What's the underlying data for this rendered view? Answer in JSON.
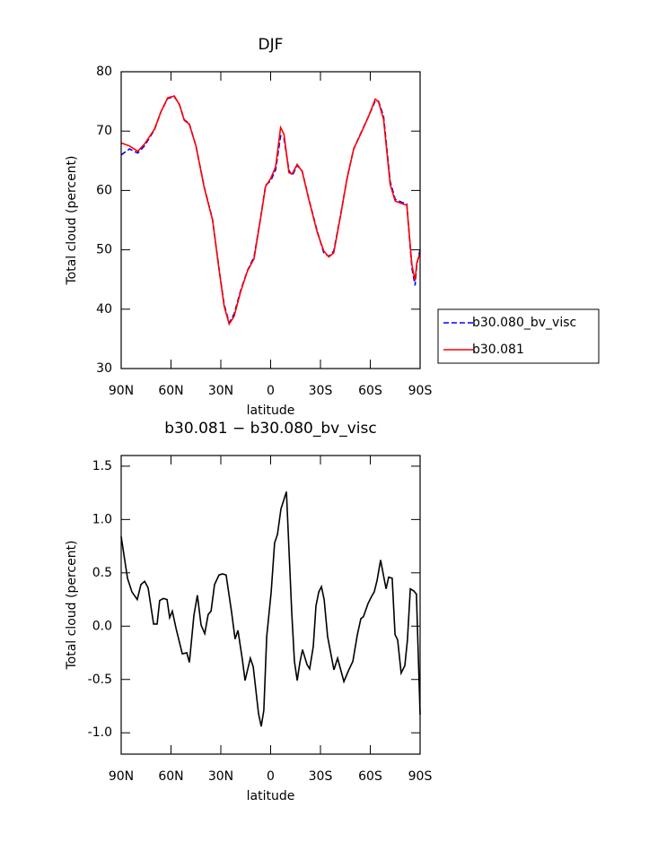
{
  "chart_data": [
    {
      "type": "line",
      "title": "DJF",
      "xlabel": "latitude",
      "ylabel": "Total cloud (percent)",
      "x": [
        90,
        85,
        80,
        76,
        70,
        66,
        62,
        58,
        55,
        52,
        49,
        45,
        40,
        35,
        31,
        28,
        25,
        22,
        18,
        14,
        10,
        6,
        3,
        0,
        -3,
        -6,
        -8,
        -11,
        -13,
        -16,
        -19,
        -23,
        -28,
        -32,
        -35,
        -38,
        -42,
        -46,
        -50,
        -55,
        -59,
        -63,
        -65,
        -68,
        -72,
        -75,
        -79,
        -82,
        -85,
        -87,
        -88,
        -90
      ],
      "series": [
        {
          "name": "b30.080_bv_visc",
          "color": "#0000ff",
          "dash": true,
          "values": [
            66.0,
            67.0,
            66.3,
            67.5,
            70.2,
            73.3,
            75.5,
            75.8,
            74.5,
            71.9,
            71.3,
            67.5,
            60.6,
            55.1,
            46.6,
            40.8,
            37.7,
            39.2,
            43.2,
            46.5,
            48.8,
            55.5,
            60.9,
            61.6,
            63.5,
            69.2,
            68.8,
            63.4,
            62.5,
            64.2,
            63.3,
            58.6,
            53.2,
            49.5,
            48.9,
            49.8,
            55.7,
            62.0,
            67.0,
            70.1,
            72.5,
            75.1,
            75.0,
            72.5,
            61.5,
            58.5,
            58.0,
            57.7,
            47.0,
            44.0,
            47.5,
            50.0
          ]
        },
        {
          "name": "b30.081",
          "color": "#ff0000",
          "dash": false,
          "values": [
            68.0,
            67.5,
            66.6,
            67.8,
            70.3,
            73.3,
            75.6,
            75.9,
            74.5,
            71.8,
            71.2,
            67.5,
            60.5,
            55.0,
            46.5,
            40.5,
            37.5,
            38.8,
            43.0,
            46.4,
            48.5,
            55.4,
            60.7,
            62.0,
            64.0,
            70.6,
            69.5,
            63.0,
            62.8,
            64.4,
            63.2,
            58.5,
            53.0,
            49.8,
            48.8,
            49.5,
            55.6,
            62.0,
            67.0,
            70.0,
            72.5,
            75.4,
            74.9,
            72.0,
            61.0,
            58.2,
            57.8,
            57.5,
            47.5,
            44.8,
            47.8,
            49.5
          ]
        }
      ],
      "xlim": [
        90,
        -90
      ],
      "xticks": [
        {
          "value": 90,
          "label": "90N"
        },
        {
          "value": 60,
          "label": "60N"
        },
        {
          "value": 30,
          "label": "30N"
        },
        0,
        {
          "value": -30,
          "label": "30S"
        },
        {
          "value": -60,
          "label": "60S"
        },
        {
          "value": -90,
          "label": "90S"
        }
      ],
      "ylim": [
        30,
        80
      ],
      "yticks": [
        30,
        40,
        50,
        60,
        70,
        80
      ],
      "legend": "right"
    },
    {
      "type": "line",
      "title": "b30.081 − b30.080_bv_visc",
      "xlabel": "latitude",
      "ylabel": "Total cloud (percent)",
      "x": [
        90,
        86.2,
        83.5,
        80.3,
        78.1,
        75.9,
        73.8,
        70.5,
        68.4,
        66.8,
        64.6,
        62.4,
        60.8,
        59.2,
        57.0,
        53.2,
        50.5,
        48.9,
        46.2,
        44.1,
        41.9,
        39.7,
        37.6,
        35.9,
        33.8,
        31.1,
        28.9,
        26.8,
        23.5,
        21.4,
        19.7,
        17.0,
        15.4,
        12.2,
        10.5,
        7.3,
        5.7,
        4.1,
        2.4,
        -0.3,
        -2.4,
        -4.1,
        -6.2,
        -9.5,
        -12.7,
        -14.3,
        -16.0,
        -17.6,
        -19.2,
        -21.9,
        -23.5,
        -25.7,
        -27.3,
        -29.0,
        -30.6,
        -32.2,
        -34.3,
        -38.1,
        -40.3,
        -44.1,
        -46.8,
        -49.5,
        -52.2,
        -54.3,
        -55.9,
        -58.6,
        -60.8,
        -62.4,
        -64.1,
        -66.2,
        -67.8,
        -69.5,
        -71.1,
        -73.2,
        -74.9,
        -76.5,
        -78.6,
        -80.8,
        -82.4,
        -84.1,
        -86.2,
        -87.8,
        -90
      ],
      "series": [
        {
          "color": "#000000",
          "values": [
            0.84,
            0.45,
            0.32,
            0.25,
            0.39,
            0.42,
            0.36,
            0.02,
            0.02,
            0.24,
            0.26,
            0.25,
            0.08,
            0.14,
            -0.02,
            -0.26,
            -0.25,
            -0.34,
            0.1,
            0.29,
            0.01,
            -0.07,
            0.11,
            0.14,
            0.39,
            0.48,
            0.49,
            0.48,
            0.13,
            -0.12,
            -0.04,
            -0.32,
            -0.51,
            -0.3,
            -0.38,
            -0.82,
            -0.94,
            -0.79,
            -0.1,
            0.32,
            0.78,
            0.86,
            1.1,
            1.26,
            0.13,
            -0.33,
            -0.51,
            -0.34,
            -0.22,
            -0.36,
            -0.4,
            -0.19,
            0.19,
            0.32,
            0.37,
            0.25,
            -0.1,
            -0.41,
            -0.3,
            -0.52,
            -0.42,
            -0.33,
            -0.08,
            0.07,
            0.09,
            0.21,
            0.28,
            0.32,
            0.43,
            0.62,
            0.49,
            0.35,
            0.46,
            0.45,
            -0.08,
            -0.13,
            -0.44,
            -0.37,
            -0.13,
            0.35,
            0.33,
            0.3,
            -0.83
          ]
        }
      ],
      "xlim": [
        90,
        -90
      ],
      "xticks": [
        {
          "value": 90,
          "label": "90N"
        },
        {
          "value": 60,
          "label": "60N"
        },
        {
          "value": 30,
          "label": "30N"
        },
        0,
        {
          "value": -30,
          "label": "30S"
        },
        {
          "value": -60,
          "label": "60S"
        },
        {
          "value": -90,
          "label": "90S"
        }
      ],
      "ylim": [
        -1.2,
        1.6
      ],
      "yticks": [
        {
          "value": -1,
          "label": "-1.0"
        },
        -0.5,
        {
          "value": 0,
          "label": "0.0"
        },
        0.5,
        {
          "value": 1,
          "label": "1.0"
        },
        1.5
      ]
    }
  ]
}
